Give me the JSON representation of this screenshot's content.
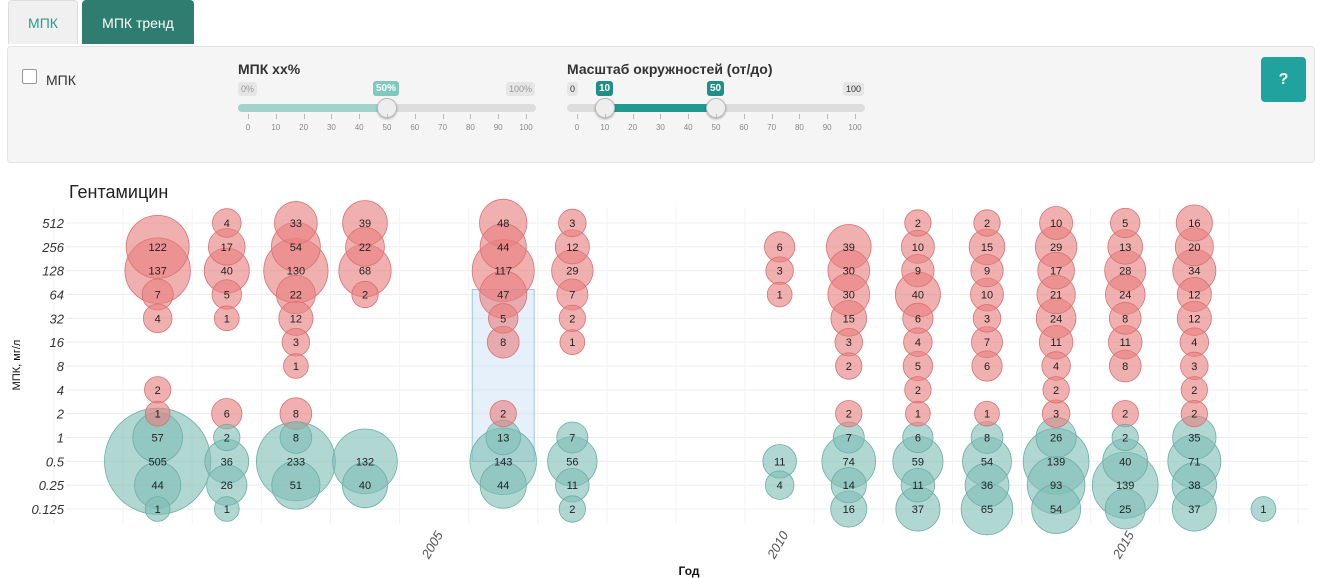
{
  "tabs": [
    {
      "label": "МПК"
    },
    {
      "label": "МПК тренд"
    }
  ],
  "controls": {
    "checkbox_label": "МПК",
    "mic_slider": {
      "label": "МПК xx%",
      "min_label": "0%",
      "max_label": "100%",
      "value_label": "50%",
      "value": 50,
      "ticks": [
        "0",
        "10",
        "20",
        "30",
        "40",
        "50",
        "60",
        "70",
        "80",
        "90",
        "100"
      ]
    },
    "scale_slider": {
      "label": "Масштаб окружностей (от/до)",
      "min_label": "0",
      "max_label": "100",
      "from_label": "10",
      "to_label": "50",
      "from": 10,
      "to": 50,
      "ticks": [
        "0",
        "10",
        "20",
        "30",
        "40",
        "50",
        "60",
        "70",
        "80",
        "90",
        "100"
      ]
    },
    "help_label": "?"
  },
  "colors": {
    "accent": "#2e7d70",
    "resistant": "#e88080",
    "susceptible": "#7fbfb6",
    "highlight": "#cfe3f7"
  },
  "chart_data": {
    "type": "scatter",
    "title": "Гентамицин",
    "xlabel": "Год",
    "ylabel": "МПК, мг/л",
    "y_categories": [
      "0.125",
      "0.25",
      "0.5",
      "1",
      "2",
      "4",
      "8",
      "16",
      "32",
      "64",
      "128",
      "256",
      "512"
    ],
    "x_ticks": [
      "2005",
      "2010",
      "2015"
    ],
    "x_range": [
      2000,
      2017
    ],
    "highlight": {
      "year": 2006,
      "y_from": "0.5",
      "y_to": "64"
    },
    "breakpoint": "2",
    "points": [
      {
        "x": 2001,
        "y": "512",
        "v": null
      },
      {
        "x": 2001,
        "y": "256",
        "v": 122
      },
      {
        "x": 2001,
        "y": "128",
        "v": 137
      },
      {
        "x": 2001,
        "y": "64",
        "v": 7
      },
      {
        "x": 2001,
        "y": "32",
        "v": 4
      },
      {
        "x": 2001,
        "y": "4",
        "v": 2
      },
      {
        "x": 2001,
        "y": "2",
        "v": 1
      },
      {
        "x": 2001,
        "y": "1",
        "v": 57
      },
      {
        "x": 2001,
        "y": "0.5",
        "v": 505
      },
      {
        "x": 2001,
        "y": "0.25",
        "v": 44
      },
      {
        "x": 2001,
        "y": "0.125",
        "v": 1
      },
      {
        "x": 2002,
        "y": "512",
        "v": 4
      },
      {
        "x": 2002,
        "y": "256",
        "v": 17
      },
      {
        "x": 2002,
        "y": "128",
        "v": 40
      },
      {
        "x": 2002,
        "y": "64",
        "v": 5
      },
      {
        "x": 2002,
        "y": "32",
        "v": 1
      },
      {
        "x": 2002,
        "y": "2",
        "v": 6
      },
      {
        "x": 2002,
        "y": "1",
        "v": 2
      },
      {
        "x": 2002,
        "y": "0.5",
        "v": 36
      },
      {
        "x": 2002,
        "y": "0.25",
        "v": 26
      },
      {
        "x": 2002,
        "y": "0.125",
        "v": 1
      },
      {
        "x": 2003,
        "y": "512",
        "v": 33
      },
      {
        "x": 2003,
        "y": "256",
        "v": 54
      },
      {
        "x": 2003,
        "y": "128",
        "v": 130
      },
      {
        "x": 2003,
        "y": "64",
        "v": 22
      },
      {
        "x": 2003,
        "y": "32",
        "v": 12
      },
      {
        "x": 2003,
        "y": "16",
        "v": 3
      },
      {
        "x": 2003,
        "y": "8",
        "v": 1
      },
      {
        "x": 2003,
        "y": "2",
        "v": 8
      },
      {
        "x": 2003,
        "y": "1",
        "v": 8
      },
      {
        "x": 2003,
        "y": "0.5",
        "v": 233
      },
      {
        "x": 2003,
        "y": "0.25",
        "v": 51
      },
      {
        "x": 2004,
        "y": "512",
        "v": 39
      },
      {
        "x": 2004,
        "y": "256",
        "v": 22
      },
      {
        "x": 2004,
        "y": "128",
        "v": 68
      },
      {
        "x": 2004,
        "y": "64",
        "v": 2
      },
      {
        "x": 2004,
        "y": "0.5",
        "v": 132
      },
      {
        "x": 2004,
        "y": "0.25",
        "v": 40
      },
      {
        "x": 2006,
        "y": "512",
        "v": 48
      },
      {
        "x": 2006,
        "y": "256",
        "v": 44
      },
      {
        "x": 2006,
        "y": "128",
        "v": 117
      },
      {
        "x": 2006,
        "y": "64",
        "v": 47
      },
      {
        "x": 2006,
        "y": "32",
        "v": 5
      },
      {
        "x": 2006,
        "y": "16",
        "v": 8
      },
      {
        "x": 2006,
        "y": "2",
        "v": 2
      },
      {
        "x": 2006,
        "y": "1",
        "v": 13
      },
      {
        "x": 2006,
        "y": "0.5",
        "v": 143
      },
      {
        "x": 2006,
        "y": "0.25",
        "v": 44
      },
      {
        "x": 2007,
        "y": "512",
        "v": 3
      },
      {
        "x": 2007,
        "y": "256",
        "v": 12
      },
      {
        "x": 2007,
        "y": "128",
        "v": 29
      },
      {
        "x": 2007,
        "y": "64",
        "v": 7
      },
      {
        "x": 2007,
        "y": "32",
        "v": 2
      },
      {
        "x": 2007,
        "y": "16",
        "v": 1
      },
      {
        "x": 2007,
        "y": "1",
        "v": 7
      },
      {
        "x": 2007,
        "y": "0.5",
        "v": 56
      },
      {
        "x": 2007,
        "y": "0.25",
        "v": 11
      },
      {
        "x": 2007,
        "y": "0.125",
        "v": 2
      },
      {
        "x": 2010,
        "y": "256",
        "v": 6
      },
      {
        "x": 2010,
        "y": "128",
        "v": 3
      },
      {
        "x": 2010,
        "y": "64",
        "v": 1
      },
      {
        "x": 2010,
        "y": "0.5",
        "v": 11
      },
      {
        "x": 2010,
        "y": "0.25",
        "v": 4
      },
      {
        "x": 2011,
        "y": "256",
        "v": 39
      },
      {
        "x": 2011,
        "y": "128",
        "v": 30
      },
      {
        "x": 2011,
        "y": "64",
        "v": 30
      },
      {
        "x": 2011,
        "y": "32",
        "v": 15
      },
      {
        "x": 2011,
        "y": "16",
        "v": 3
      },
      {
        "x": 2011,
        "y": "8",
        "v": 2
      },
      {
        "x": 2011,
        "y": "2",
        "v": 2
      },
      {
        "x": 2011,
        "y": "1",
        "v": 7
      },
      {
        "x": 2011,
        "y": "0.5",
        "v": 74
      },
      {
        "x": 2011,
        "y": "0.25",
        "v": 14
      },
      {
        "x": 2011,
        "y": "0.125",
        "v": 16
      },
      {
        "x": 2012,
        "y": "512",
        "v": 2
      },
      {
        "x": 2012,
        "y": "256",
        "v": 10
      },
      {
        "x": 2012,
        "y": "128",
        "v": 9
      },
      {
        "x": 2012,
        "y": "64",
        "v": 40
      },
      {
        "x": 2012,
        "y": "32",
        "v": 6
      },
      {
        "x": 2012,
        "y": "16",
        "v": 4
      },
      {
        "x": 2012,
        "y": "8",
        "v": 5
      },
      {
        "x": 2012,
        "y": "4",
        "v": 2
      },
      {
        "x": 2012,
        "y": "2",
        "v": 1
      },
      {
        "x": 2012,
        "y": "1",
        "v": 6
      },
      {
        "x": 2012,
        "y": "0.5",
        "v": 59
      },
      {
        "x": 2012,
        "y": "0.25",
        "v": 11
      },
      {
        "x": 2012,
        "y": "0.125",
        "v": 37
      },
      {
        "x": 2013,
        "y": "512",
        "v": 2
      },
      {
        "x": 2013,
        "y": "256",
        "v": 15
      },
      {
        "x": 2013,
        "y": "128",
        "v": 9
      },
      {
        "x": 2013,
        "y": "64",
        "v": 10
      },
      {
        "x": 2013,
        "y": "32",
        "v": 3
      },
      {
        "x": 2013,
        "y": "16",
        "v": 7
      },
      {
        "x": 2013,
        "y": "8",
        "v": 6
      },
      {
        "x": 2013,
        "y": "2",
        "v": 1
      },
      {
        "x": 2013,
        "y": "1",
        "v": 8
      },
      {
        "x": 2013,
        "y": "0.5",
        "v": 54
      },
      {
        "x": 2013,
        "y": "0.25",
        "v": 36
      },
      {
        "x": 2013,
        "y": "0.125",
        "v": 65
      },
      {
        "x": 2014,
        "y": "512",
        "v": 10
      },
      {
        "x": 2014,
        "y": "256",
        "v": 29
      },
      {
        "x": 2014,
        "y": "128",
        "v": 17
      },
      {
        "x": 2014,
        "y": "64",
        "v": 21
      },
      {
        "x": 2014,
        "y": "32",
        "v": 24
      },
      {
        "x": 2014,
        "y": "16",
        "v": 11
      },
      {
        "x": 2014,
        "y": "8",
        "v": 4
      },
      {
        "x": 2014,
        "y": "4",
        "v": 2
      },
      {
        "x": 2014,
        "y": "2",
        "v": 3
      },
      {
        "x": 2014,
        "y": "1",
        "v": 26
      },
      {
        "x": 2014,
        "y": "0.5",
        "v": 139
      },
      {
        "x": 2014,
        "y": "0.25",
        "v": 93
      },
      {
        "x": 2014,
        "y": "0.125",
        "v": 54
      },
      {
        "x": 2015,
        "y": "512",
        "v": 5
      },
      {
        "x": 2015,
        "y": "256",
        "v": 13
      },
      {
        "x": 2015,
        "y": "128",
        "v": 28
      },
      {
        "x": 2015,
        "y": "64",
        "v": 24
      },
      {
        "x": 2015,
        "y": "32",
        "v": 8
      },
      {
        "x": 2015,
        "y": "16",
        "v": 11
      },
      {
        "x": 2015,
        "y": "8",
        "v": 8
      },
      {
        "x": 2015,
        "y": "2",
        "v": 2
      },
      {
        "x": 2015,
        "y": "1",
        "v": 2
      },
      {
        "x": 2015,
        "y": "0.5",
        "v": 40
      },
      {
        "x": 2015,
        "y": "0.25",
        "v": 139
      },
      {
        "x": 2015,
        "y": "0.125",
        "v": 25
      },
      {
        "x": 2016,
        "y": "512",
        "v": 16
      },
      {
        "x": 2016,
        "y": "256",
        "v": 20
      },
      {
        "x": 2016,
        "y": "128",
        "v": 34
      },
      {
        "x": 2016,
        "y": "64",
        "v": 12
      },
      {
        "x": 2016,
        "y": "32",
        "v": 12
      },
      {
        "x": 2016,
        "y": "16",
        "v": 4
      },
      {
        "x": 2016,
        "y": "8",
        "v": 3
      },
      {
        "x": 2016,
        "y": "4",
        "v": 2
      },
      {
        "x": 2016,
        "y": "2",
        "v": 2
      },
      {
        "x": 2016,
        "y": "1",
        "v": 35
      },
      {
        "x": 2016,
        "y": "0.5",
        "v": 71
      },
      {
        "x": 2016,
        "y": "0.25",
        "v": 38
      },
      {
        "x": 2016,
        "y": "0.125",
        "v": 37
      },
      {
        "x": 2017,
        "y": "0.125",
        "v": 1
      }
    ]
  }
}
